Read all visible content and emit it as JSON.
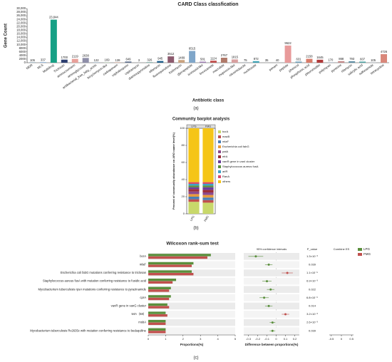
{
  "chart_data": [
    {
      "type": "bar",
      "title": "CARD Class classfication",
      "ylabel": "Gene Count",
      "xlabel": "Antibiotic class",
      "caption": "(a)",
      "categories": [
        "MDR",
        "MLS",
        "Multidrug",
        "Triclosan",
        "aminocoumarin",
        "aminoglycoside",
        "antibacterial_free_fatty_acids",
        "bicyclomycin-like",
        "carbapenem",
        "cephalosporin",
        "cephamycin",
        "diaminopyrimidine",
        "elfamycin",
        "fluoroquinolone",
        "fosfomycin",
        "glycopeptide",
        "isoniazid-like",
        "lincosamide",
        "macrolide",
        "mupirocin-like",
        "nitroimidazole",
        "nucleoside",
        null,
        "penam",
        "peptide",
        "phenicol",
        "phosphonic acid",
        "pleuromutilin",
        "polymyxin",
        "pyrazine",
        "rifamycin",
        "salicylic acid",
        "sulfonamide",
        "tetracycline"
      ],
      "values": [
        105,
        337,
        23844,
        1700,
        2119,
        2638,
        122,
        169,
        139,
        649,
        3,
        326,
        945,
        3512,
        1489,
        6515,
        581,
        1124,
        2767,
        1815,
        75,
        872,
        35,
        40,
        9522,
        631,
        2158,
        1645,
        170,
        868,
        793,
        607,
        105,
        4726
      ],
      "value_labels": [
        "105",
        "337",
        "23,844",
        "1700",
        "2119",
        "2638",
        "122",
        "169",
        "139",
        "649",
        "3",
        "326",
        "945",
        "3512",
        "1489",
        "6515",
        "581",
        "1124",
        "2767",
        "1815",
        "75",
        "872",
        "35",
        "40",
        "9522",
        "631",
        "2158",
        "1645",
        "170",
        "868",
        "793",
        "607",
        "105",
        "4726"
      ],
      "colors": [
        "#3a7ca5",
        "#8fb3d9",
        "#16a085",
        "#2c3e70",
        "#e8a09a",
        "#8e8ea8",
        "#6c9fc9",
        "#a3c4a0",
        "#d98c6a",
        "#5d6d8a",
        "#b9b9b9",
        "#7fb0a8",
        "#1f5f8b",
        "#8c5a6e",
        "#c9a27e",
        "#7fa6c9",
        "#9b7bb0",
        "#c0504d",
        "#b07a6a",
        "#d9a0a0",
        "#6a8caf",
        "#3fa3b5",
        "#999999",
        "#aab4c8",
        "#e89a9a",
        "#6f9fb9",
        "#d97b6a",
        "#b03a3a",
        "#8aa0b8",
        "#c48a8a",
        "#5f8fa5",
        "#4aa0a0",
        "#9fb0c0",
        "#d9877a"
      ],
      "ylim": [
        0,
        30000
      ],
      "yticks": [
        0,
        2000,
        4000,
        6000,
        8000,
        {
          "value": 10000,
          "label": "10,000"
        },
        {
          "value": 12000,
          "label": "12,000"
        },
        {
          "value": 14000,
          "label": "14,000"
        },
        {
          "value": 16000,
          "label": "16,000"
        },
        {
          "value": 18000,
          "label": "18,000"
        },
        {
          "value": 20000,
          "label": "20,000"
        },
        {
          "value": 22000,
          "label": "22,000"
        },
        {
          "value": 24000,
          "label": "24,000"
        },
        {
          "value": 26000,
          "label": "26,000"
        },
        {
          "value": 28000,
          "label": "28,000"
        },
        {
          "value": 30000,
          "label": "30,000"
        }
      ]
    },
    {
      "type": "stacked_bar",
      "title": "Community barplot analysis",
      "ylabel": "Percent of community abundance on ARO name level(%)",
      "caption": "(b)",
      "categories": [
        "LPG",
        "FMG"
      ],
      "series": [
        {
          "name": "bcrA",
          "color": "#c8d86a",
          "values": [
            14,
            13
          ]
        },
        {
          "name": "macB",
          "color": "#c0504d",
          "values": [
            3,
            3
          ]
        },
        {
          "name": "mlaF",
          "color": "#4a7fb5",
          "values": [
            3,
            3
          ]
        },
        {
          "name": "Escherichia coli fabG",
          "color": "#e89b3c",
          "values": [
            3,
            3
          ]
        },
        {
          "name": "patA",
          "color": "#8c4a8c",
          "values": [
            3,
            3
          ]
        },
        {
          "name": "efrA",
          "color": "#9c2e3a",
          "values": [
            3,
            3
          ]
        },
        {
          "name": "vanR gene in vanI cluster",
          "color": "#6a3d9a",
          "values": [
            2,
            3
          ]
        },
        {
          "name": "Staphylococcus aureus fusA",
          "color": "#5a8f3c",
          "values": [
            2,
            2
          ]
        },
        {
          "name": "arlR",
          "color": "#3fa3c8",
          "values": [
            2,
            2
          ]
        },
        {
          "name": "RanA",
          "color": "#d94a6a",
          "values": [
            2,
            2
          ]
        },
        {
          "name": "others",
          "color": "#f5c518",
          "values": [
            63,
            63
          ]
        }
      ],
      "ylim": [
        0,
        100
      ],
      "yticks": [
        0,
        20,
        40,
        60,
        80,
        100
      ]
    },
    {
      "type": "grouped_hbar",
      "title": "Wilcoxon rank-sum test",
      "xlabel": "Proportions(%)",
      "caption": "(c)",
      "categories": [
        "bcrA",
        "mlaF",
        "Escherichia coli fabG mutations conferring resistance to triclosan",
        "Staphylococcus aureus fusA with mutation conferring resistance to fusidic acid",
        "Mycobacterium tuberculosis rpsA mutations conferring resistance to pyrazinamide",
        "cprA",
        "vanR gene in vanG cluster",
        "tetA（58）",
        "msbA",
        "Mycobacterium tuberculosis Rv2635c with mutation conferring resistance to bedaquiline"
      ],
      "series": [
        {
          "name": "LPG",
          "color": "#5a8f3c",
          "values": [
            3.6,
            2.6,
            2.5,
            1.6,
            1.3,
            1.3,
            1.1,
            1.0,
            1.0,
            1.0
          ]
        },
        {
          "name": "FMG",
          "color": "#c0504d",
          "values": [
            3.4,
            2.5,
            2.6,
            1.4,
            1.2,
            1.2,
            1.2,
            1.1,
            1.0,
            1.0
          ]
        }
      ],
      "xlim": [
        0,
        5
      ],
      "xticks": [
        0,
        1,
        2,
        3,
        4,
        5
      ],
      "ci_title": "95% confidence intervals",
      "ci_xlabel": "Difference between proportions(%)",
      "difference": [
        -0.22,
        -0.08,
        0.12,
        -0.1,
        -0.06,
        -0.13,
        -0.08,
        0.1,
        -0.04,
        -0.04
      ],
      "ci_low": [
        -0.3,
        -0.12,
        0.06,
        -0.15,
        -0.1,
        -0.18,
        -0.12,
        0.06,
        -0.07,
        -0.07
      ],
      "ci_high": [
        -0.14,
        -0.04,
        0.18,
        -0.05,
        -0.02,
        -0.08,
        -0.04,
        0.14,
        -0.01,
        -0.01
      ],
      "ci_xlim": [
        -0.35,
        0.25
      ],
      "ci_xticks": [
        -0.3,
        -0.2,
        -0.1,
        0,
        0.1,
        0.2
      ],
      "p_title": "P_value",
      "p_values": [
        "1.3×10⁻³",
        "0.039",
        "1.1×10⁻⁵",
        "6.9×10⁻³",
        "0.022",
        "6.8×10⁻⁶",
        "0.014",
        "3.2×10⁻³",
        "2.6×10⁻³",
        "0.039"
      ],
      "es_title": "Combine ES",
      "es_xlim": [
        -0.6,
        0.6
      ],
      "es_xticks": [
        -0.5,
        0,
        0.5
      ]
    }
  ]
}
